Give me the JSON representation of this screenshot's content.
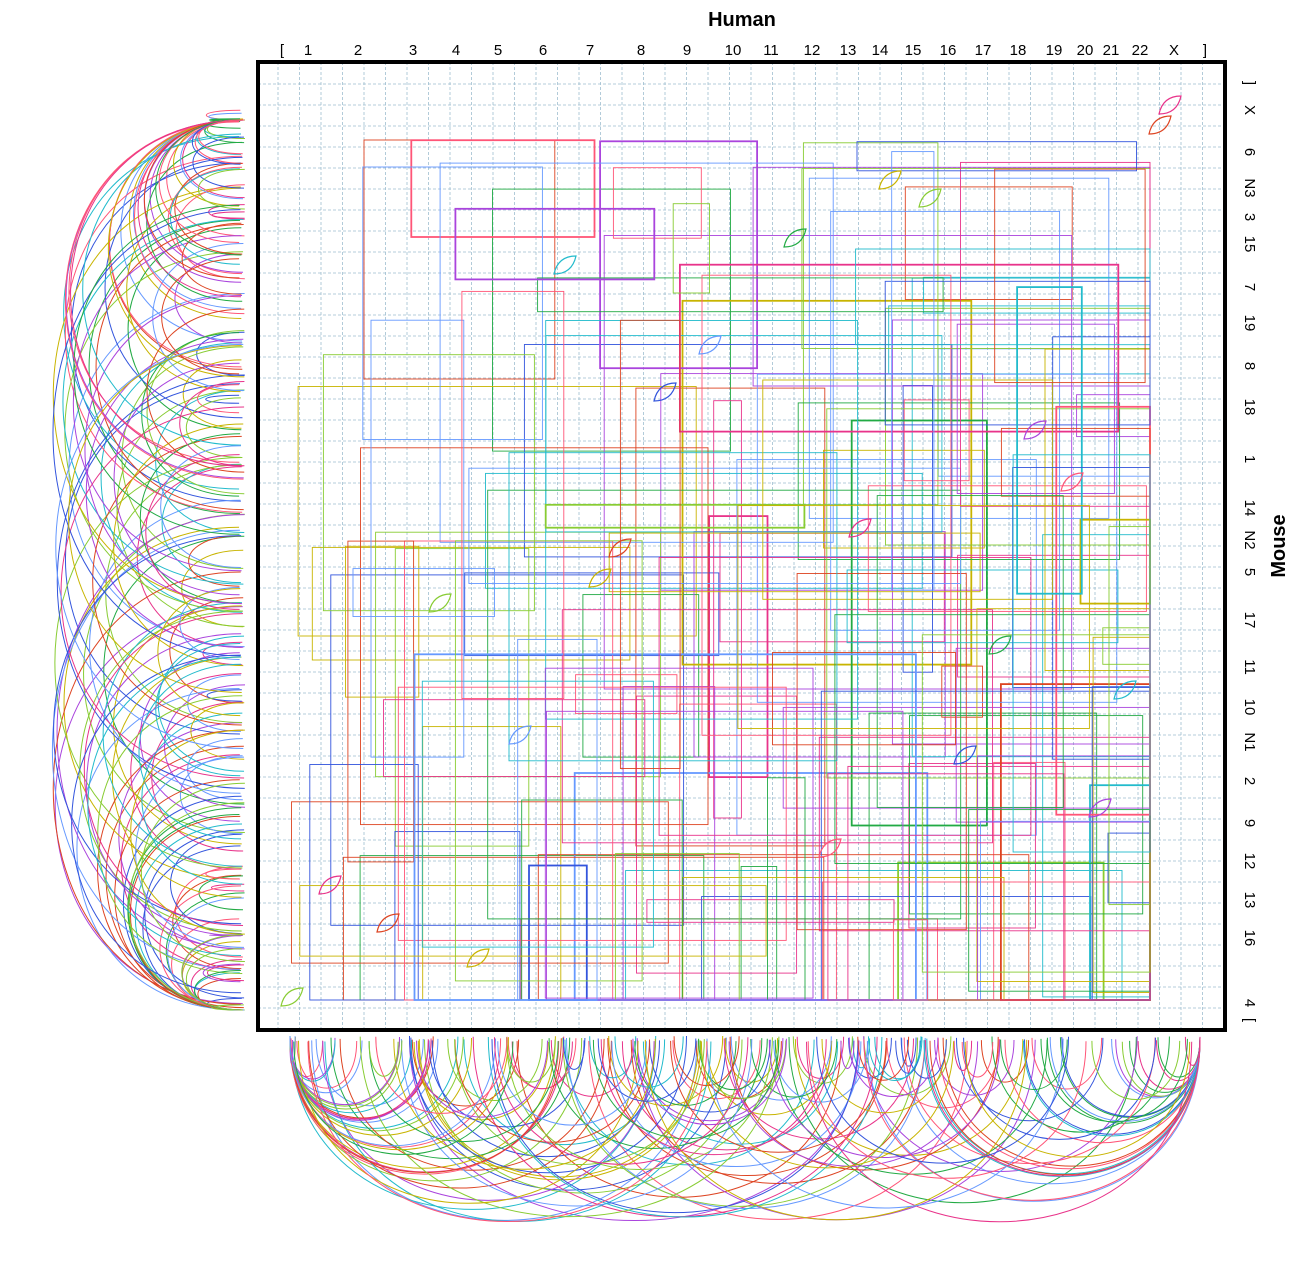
{
  "figure": {
    "x_axis_title": "Human",
    "y_axis_title": "Mouse",
    "x_ticks": [
      "[",
      "1",
      "2",
      "3",
      "4",
      "5",
      "6",
      "7",
      "8",
      "9",
      "10",
      "11",
      "12",
      "13",
      "14",
      "15",
      "16",
      "17",
      "18",
      "19",
      "20",
      "21",
      "22",
      "X",
      "]"
    ],
    "y_ticks": [
      "]",
      "X",
      "6",
      "N3",
      "3",
      "15",
      "7",
      "19",
      "8",
      "18",
      "1",
      "14",
      "N2",
      "5",
      "17",
      "11",
      "10",
      "N1",
      "2",
      "9",
      "12",
      "13",
      "16",
      "4",
      "["
    ],
    "palette": [
      "#e8338a",
      "#3355dd",
      "#22aa44",
      "#dd4422",
      "#aa44dd",
      "#22bbcc",
      "#c8b400",
      "#ff5577",
      "#6699ff",
      "#88cc33"
    ],
    "grid_color": "#9fbfd0",
    "frame_color": "#000000"
  }
}
